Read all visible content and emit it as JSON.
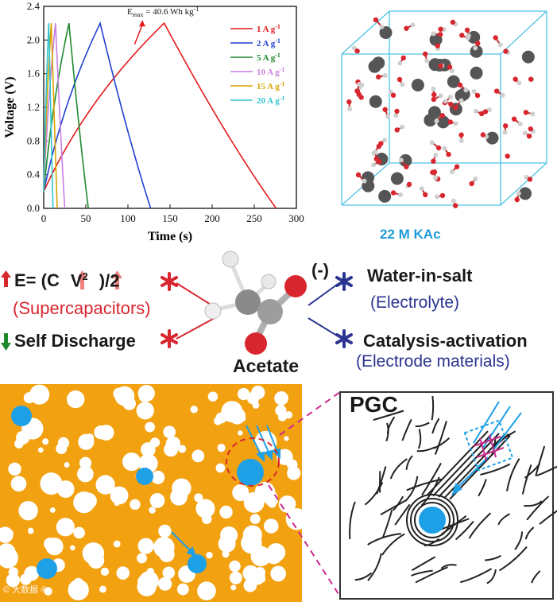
{
  "chart_data": {
    "type": "line",
    "xlabel": "Time (s)",
    "ylabel": "Voltage (V)",
    "xlim": [
      0,
      300
    ],
    "ylim": [
      0,
      2.4
    ],
    "xticks": [
      "0",
      "50",
      "100",
      "150",
      "200",
      "250",
      "300"
    ],
    "yticks": [
      "0.0",
      "0.4",
      "0.8",
      "1.2",
      "1.6",
      "2.0",
      "2.4"
    ],
    "annotation": "Emax = 40.6 Wh kg-1",
    "annotation_base": "E",
    "annotation_sub": "max",
    "annotation_rest": " = 40.6 Wh kg",
    "annotation_sup": "-1",
    "legend_position": "top-right",
    "series": [
      {
        "name": "1 A g-1",
        "label": "1 A g",
        "sup": "-1",
        "color": "#e31a1c",
        "x": [
          0,
          143,
          276
        ],
        "y": [
          0.2,
          2.2,
          0
        ]
      },
      {
        "name": "2 A g-1",
        "label": "2 A g",
        "sup": "-1",
        "color": "#1f3fd0",
        "x": [
          0,
          67,
          127
        ],
        "y": [
          0.2,
          2.2,
          0
        ]
      },
      {
        "name": "5 A g-1",
        "label": "5 A g",
        "sup": "-1",
        "color": "#1e8a2e",
        "x": [
          0,
          30,
          53
        ],
        "y": [
          0.2,
          2.2,
          0
        ]
      },
      {
        "name": "10 A g-1",
        "label": "10 A g",
        "sup": "-1",
        "color": "#c77fe0",
        "x": [
          0,
          14,
          25
        ],
        "y": [
          0.2,
          2.2,
          0
        ]
      },
      {
        "name": "15 A g-1",
        "label": "15 A g",
        "sup": "-1",
        "color": "#d8a300",
        "x": [
          0,
          9,
          16
        ],
        "y": [
          0.2,
          2.2,
          0
        ]
      },
      {
        "name": "20 A g-1",
        "label": "20 A g",
        "sup": "-1",
        "color": "#31c4cf",
        "x": [
          0,
          6,
          11
        ],
        "y": [
          0.2,
          2.2,
          0
        ]
      }
    ]
  },
  "crystal": {
    "label": "22 M KAc",
    "box_color": "#4cc3e8"
  },
  "concept": {
    "formula_pre": "E= (C",
    "formula_mid": "V",
    "formula_sup": "2",
    "formula_post": ")/2",
    "supercapacitors": "(Supercapacitors)",
    "self_discharge": "Self Discharge",
    "molecule": "Acetate",
    "charge": "(-)",
    "water_in_salt": "Water-in-salt",
    "electrolyte": "(Electrolyte)",
    "catalysis": "Catalysis-activation",
    "electrode_materials": "(Electrode materials)"
  },
  "panel": {
    "title": "PGC",
    "background": "#f2a111",
    "pore_color": "#1ea0e6"
  },
  "watermark": "© 大数据 ®"
}
